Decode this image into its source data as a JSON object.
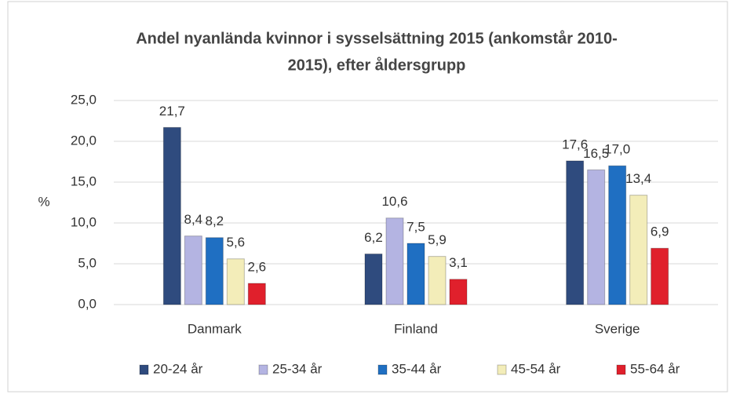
{
  "chart_data": {
    "type": "bar",
    "title": [
      "Andel nyanlända  kvinnor i sysselsättning 2015 (ankomstår 2010-",
      "2015), efter åldersgrupp"
    ],
    "y_label": "%",
    "categories": [
      "Danmark",
      "Finland",
      "Sverige"
    ],
    "series": [
      {
        "name": "20-24 år",
        "color": "#2f4b7e",
        "values": [
          21.7,
          6.2,
          17.6
        ],
        "value_labels": [
          "21,7",
          "6,2",
          "17,6"
        ]
      },
      {
        "name": "25-34 år",
        "color": "#b4b4e2",
        "values": [
          8.4,
          10.6,
          16.5
        ],
        "value_labels": [
          "8,4",
          "10,6",
          "16,5"
        ]
      },
      {
        "name": "35-44 år",
        "color": "#1f6fc2",
        "values": [
          8.2,
          7.5,
          17.0
        ],
        "value_labels": [
          "8,2",
          "7,5",
          "17,0"
        ]
      },
      {
        "name": "45-54 år",
        "color": "#f3edb9",
        "values": [
          5.6,
          5.9,
          13.4
        ],
        "value_labels": [
          "5,6",
          "5,9",
          "13,4"
        ]
      },
      {
        "name": "55-64 år",
        "color": "#e0202c",
        "values": [
          2.6,
          3.1,
          6.9
        ],
        "value_labels": [
          "2,6",
          "3,1",
          "6,9"
        ]
      }
    ],
    "ylim": [
      0,
      25
    ],
    "yticks": [
      {
        "value": 0,
        "label": "0,0"
      },
      {
        "value": 5,
        "label": "5,0"
      },
      {
        "value": 10,
        "label": "10,0"
      },
      {
        "value": 15,
        "label": "15,0"
      },
      {
        "value": 20,
        "label": "20,0"
      },
      {
        "value": 25,
        "label": "25,0"
      }
    ],
    "grid": true,
    "legend": "bottom"
  }
}
